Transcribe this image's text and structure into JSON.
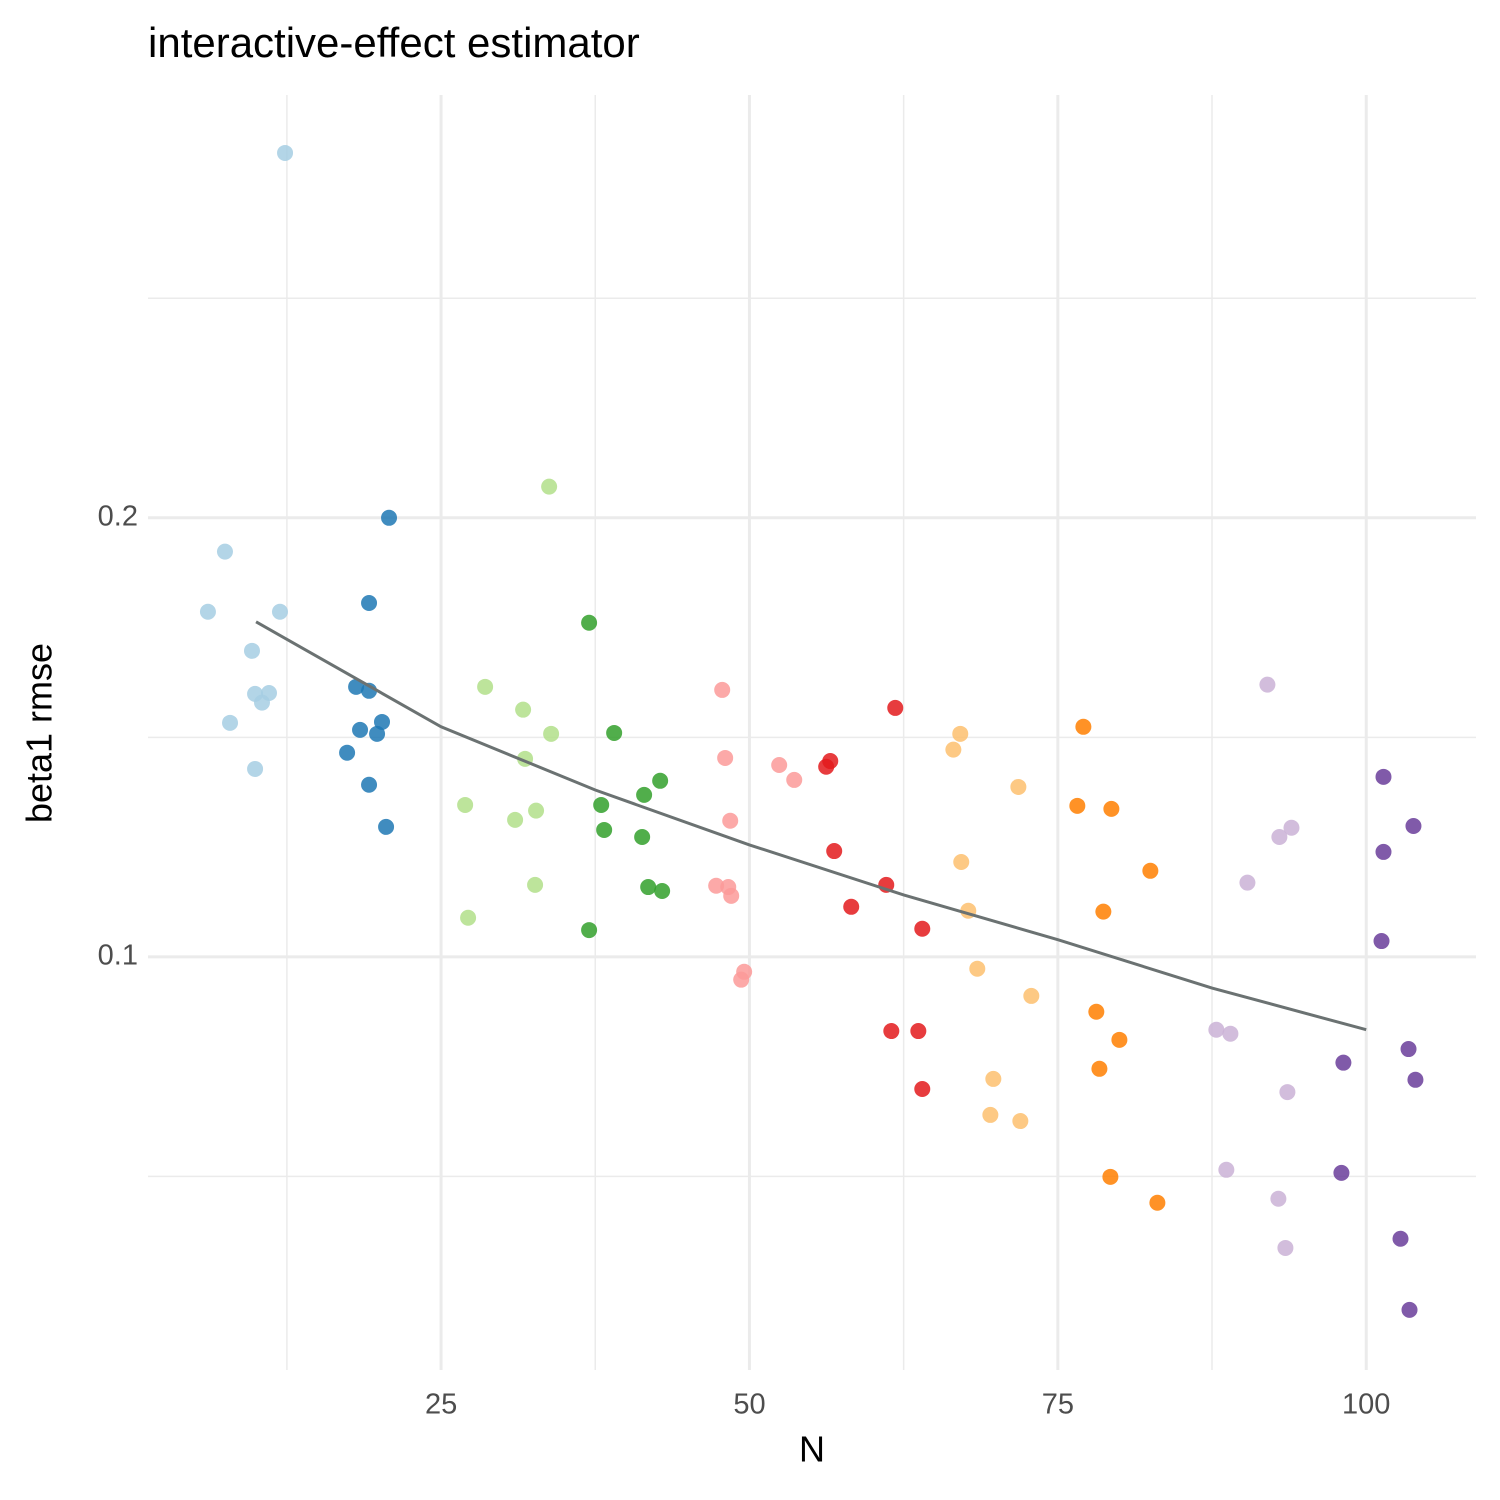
{
  "chart_data": {
    "type": "scatter",
    "title": "interactive-effect estimator",
    "x_label": "N",
    "y_label": "beta1 rmse",
    "xlim": [
      1.24,
      108.9
    ],
    "ylim": [
      0.0059,
      0.2963
    ],
    "xticks": [
      25,
      50,
      75,
      100
    ],
    "xminorticks": [
      12.5,
      37.5,
      62.5,
      87.5
    ],
    "yticks": [
      0.1,
      0.2
    ],
    "yminorticks": [
      0.05,
      0.15,
      0.25
    ],
    "grid": true,
    "series": [
      {
        "color": "#a6cee3",
        "x": [
          12.35,
          7.48,
          6.1,
          11.94,
          9.67,
          9.92,
          11.05,
          10.48,
          7.89,
          9.92
        ],
        "values": [
          0.2831,
          0.1923,
          0.1786,
          0.1786,
          0.1697,
          0.1599,
          0.1601,
          0.1579,
          0.1533,
          0.1428
        ]
      },
      {
        "color": "#1f78b4",
        "x": [
          20.78,
          19.16,
          18.11,
          19.16,
          18.43,
          20.21,
          19.81,
          17.38,
          19.16,
          20.54
        ],
        "values": [
          0.2,
          0.1806,
          0.1615,
          0.1606,
          0.1517,
          0.1535,
          0.1508,
          0.1465,
          0.1392,
          0.1296
        ]
      },
      {
        "color": "#b2df8a",
        "x": [
          33.76,
          28.57,
          31.65,
          33.92,
          31.81,
          26.95,
          32.7,
          31.0,
          32.62,
          27.19
        ],
        "values": [
          0.2071,
          0.1615,
          0.1563,
          0.1508,
          0.1451,
          0.1346,
          0.1333,
          0.1312,
          0.1164,
          0.1089
        ]
      },
      {
        "color": "#33a02c",
        "x": [
          37.0,
          39.03,
          42.76,
          41.46,
          37.98,
          38.22,
          41.3,
          41.79,
          42.92,
          37.0
        ],
        "values": [
          0.1761,
          0.151,
          0.1401,
          0.1369,
          0.1346,
          0.1289,
          0.1273,
          0.1159,
          0.115,
          0.1061
        ]
      },
      {
        "color": "#fb9a99",
        "x": [
          47.79,
          48.03,
          52.41,
          53.63,
          48.44,
          47.3,
          48.28,
          48.52,
          49.57,
          49.33
        ],
        "values": [
          0.1608,
          0.1453,
          0.1437,
          0.1403,
          0.131,
          0.1162,
          0.1159,
          0.1139,
          0.0966,
          0.0948
        ]
      },
      {
        "color": "#e31a1c",
        "x": [
          61.82,
          56.55,
          56.22,
          56.87,
          61.09,
          58.25,
          64.01,
          61.5,
          63.69,
          64.01
        ],
        "values": [
          0.1567,
          0.1446,
          0.1433,
          0.1241,
          0.1164,
          0.1114,
          0.1064,
          0.0831,
          0.0831,
          0.0699
        ]
      },
      {
        "color": "#fdbf6f",
        "x": [
          67.09,
          66.53,
          71.8,
          67.17,
          67.74,
          68.47,
          72.85,
          69.77,
          69.53,
          71.96
        ],
        "values": [
          0.1508,
          0.1472,
          0.1387,
          0.1216,
          0.1105,
          0.0973,
          0.0911,
          0.0722,
          0.064,
          0.0626
        ]
      },
      {
        "color": "#ff7f00",
        "x": [
          77.07,
          76.58,
          79.34,
          82.5,
          78.69,
          78.12,
          79.99,
          78.37,
          79.26,
          83.07
        ],
        "values": [
          0.1524,
          0.1344,
          0.1337,
          0.1196,
          0.1103,
          0.0875,
          0.0811,
          0.0745,
          0.0499,
          0.044
        ]
      },
      {
        "color": "#cab2d6",
        "x": [
          91.99,
          93.94,
          92.96,
          90.37,
          87.85,
          88.99,
          93.61,
          88.66,
          92.88,
          93.45
        ],
        "values": [
          0.162,
          0.1294,
          0.1273,
          0.1169,
          0.0834,
          0.0825,
          0.0692,
          0.0515,
          0.0449,
          0.0337
        ]
      },
      {
        "color": "#6a3d9a",
        "x": [
          101.4,
          103.83,
          101.4,
          101.24,
          103.43,
          98.15,
          103.99,
          97.99,
          102.78,
          103.51
        ],
        "values": [
          0.141,
          0.1298,
          0.1239,
          0.1036,
          0.079,
          0.0759,
          0.072,
          0.0508,
          0.0358,
          0.0196
        ]
      }
    ],
    "fit": {
      "color": "#6b7272",
      "x": [
        10,
        25,
        37.5,
        50,
        62.5,
        75,
        87.5,
        100
      ],
      "values": [
        0.1763,
        0.1524,
        0.138,
        0.1255,
        0.1141,
        0.1039,
        0.0929,
        0.0834
      ]
    }
  }
}
